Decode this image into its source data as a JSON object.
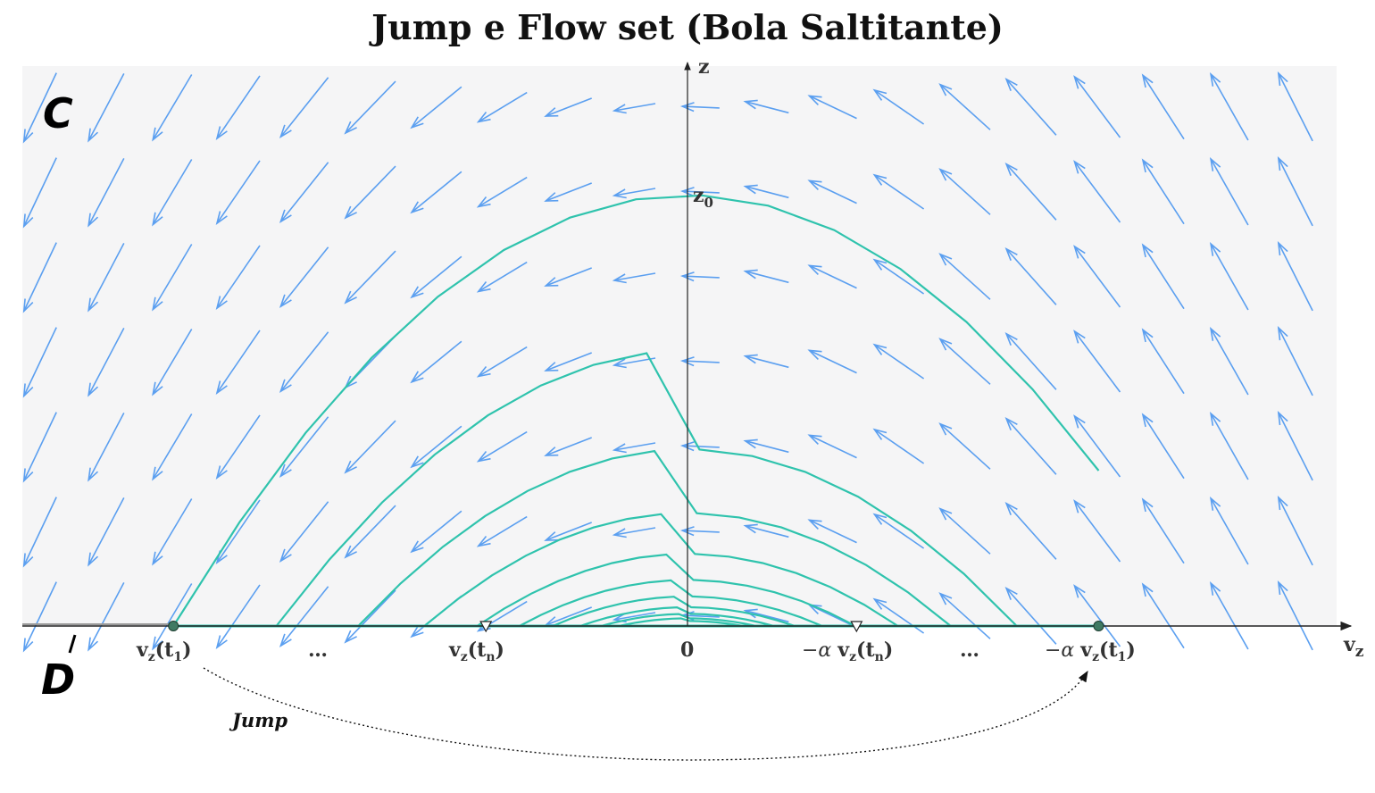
{
  "title": "Jump e Flow set (Bola Saltitante)",
  "axes": {
    "x_label": "v",
    "x_sub": "z",
    "y_label": "z"
  },
  "sets": {
    "flow": "C",
    "jump": "D"
  },
  "labels": {
    "z0": "z",
    "z0_sub": "0",
    "vz_t1": "v",
    "vz_t1_sub": "z",
    "vz_t1_rest": "(t",
    "vz_t1_idx": "1",
    "vz_t1_close": ")",
    "dots": "…",
    "vz_tn_rest": "(t",
    "vz_tn_idx": "n",
    "zero": "0",
    "neg_alpha": "−α "
  },
  "jump_label": "Jump",
  "colors": {
    "flow_bg": "#f5f5f6",
    "arrows": "#5b9ff0",
    "trajectory": "#2fc3ad",
    "axis": "#222222",
    "marker": "#3f7a63"
  },
  "chart_data": {
    "type": "diagram",
    "trajectories": [
      {
        "vz_start": -5.84,
        "vz_end": 4.67
      },
      {
        "vz_start": -4.67,
        "vz_end": 3.74
      },
      {
        "vz_start": -3.74,
        "vz_end": 2.99
      },
      {
        "vz_start": -2.99,
        "vz_end": 2.39
      },
      {
        "vz_start": -2.39,
        "vz_end": 1.91
      },
      {
        "vz_start": -1.91,
        "vz_end": 1.53
      },
      {
        "vz_start": -1.53,
        "vz_end": 1.22
      },
      {
        "vz_start": -1.22,
        "vz_end": 0.98
      },
      {
        "vz_start": -0.98,
        "vz_end": 0.78
      },
      {
        "vz_start": -0.78,
        "vz_end": 0.63
      }
    ],
    "alpha": 0.8
  }
}
